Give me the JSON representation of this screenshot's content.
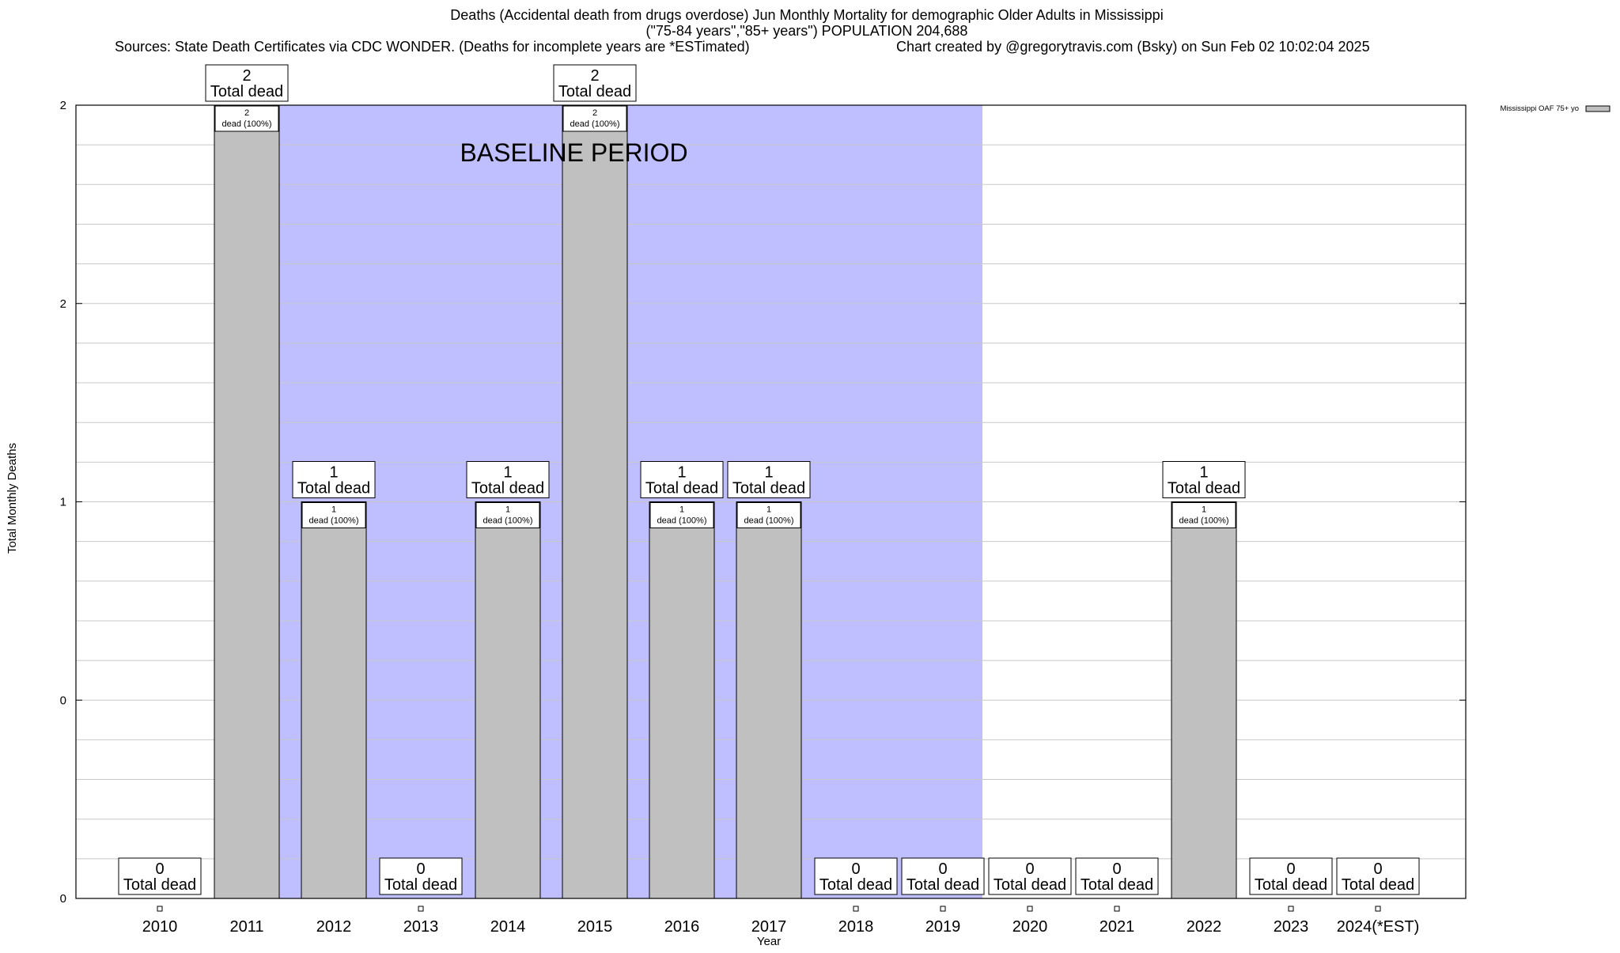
{
  "chart_data": {
    "type": "bar",
    "title_lines": [
      "Deaths (Accidental death from drugs overdose) Jun Monthly Mortality for demographic Older Adults in Mississippi",
      "(\"75-84 years\",\"85+ years\") POPULATION 204,688"
    ],
    "subtitle_left": "Sources: State Death Certificates via CDC WONDER. (Deaths for incomplete years are *ESTimated)",
    "subtitle_right": "Chart created by @gregorytravis.com (Bsky) on Sun Feb 02 10:02:04 2025",
    "xlabel": "Year",
    "ylabel": "Total Monthly Deaths",
    "categories": [
      "2010",
      "2011",
      "2012",
      "2013",
      "2014",
      "2015",
      "2016",
      "2017",
      "2018",
      "2019",
      "2020",
      "2021",
      "2022",
      "2023",
      "2024(*EST)"
    ],
    "series": [
      {
        "name": "Mississippi OAF 75+ yo",
        "values": [
          0,
          2,
          1,
          0,
          1,
          2,
          1,
          1,
          0,
          0,
          0,
          0,
          1,
          0,
          0
        ]
      }
    ],
    "ylim": [
      0,
      2
    ],
    "y_tick_labels": [
      "0",
      "0",
      "1",
      "2",
      "2"
    ],
    "y_tick_values": [
      0,
      0.5,
      1,
      1.5,
      2
    ],
    "grid": true,
    "legend_position": "top-right",
    "total_label": "Total dead",
    "segment_label_suffix": "dead (100%)",
    "baseline": {
      "label": "BASELINE PERIOD",
      "start": "2012",
      "end": "2019"
    },
    "colors": {
      "bar": "#c0c0c0",
      "baseline": "#bfbfff",
      "grid": "#c8c8c8",
      "axis": "#000000"
    }
  }
}
